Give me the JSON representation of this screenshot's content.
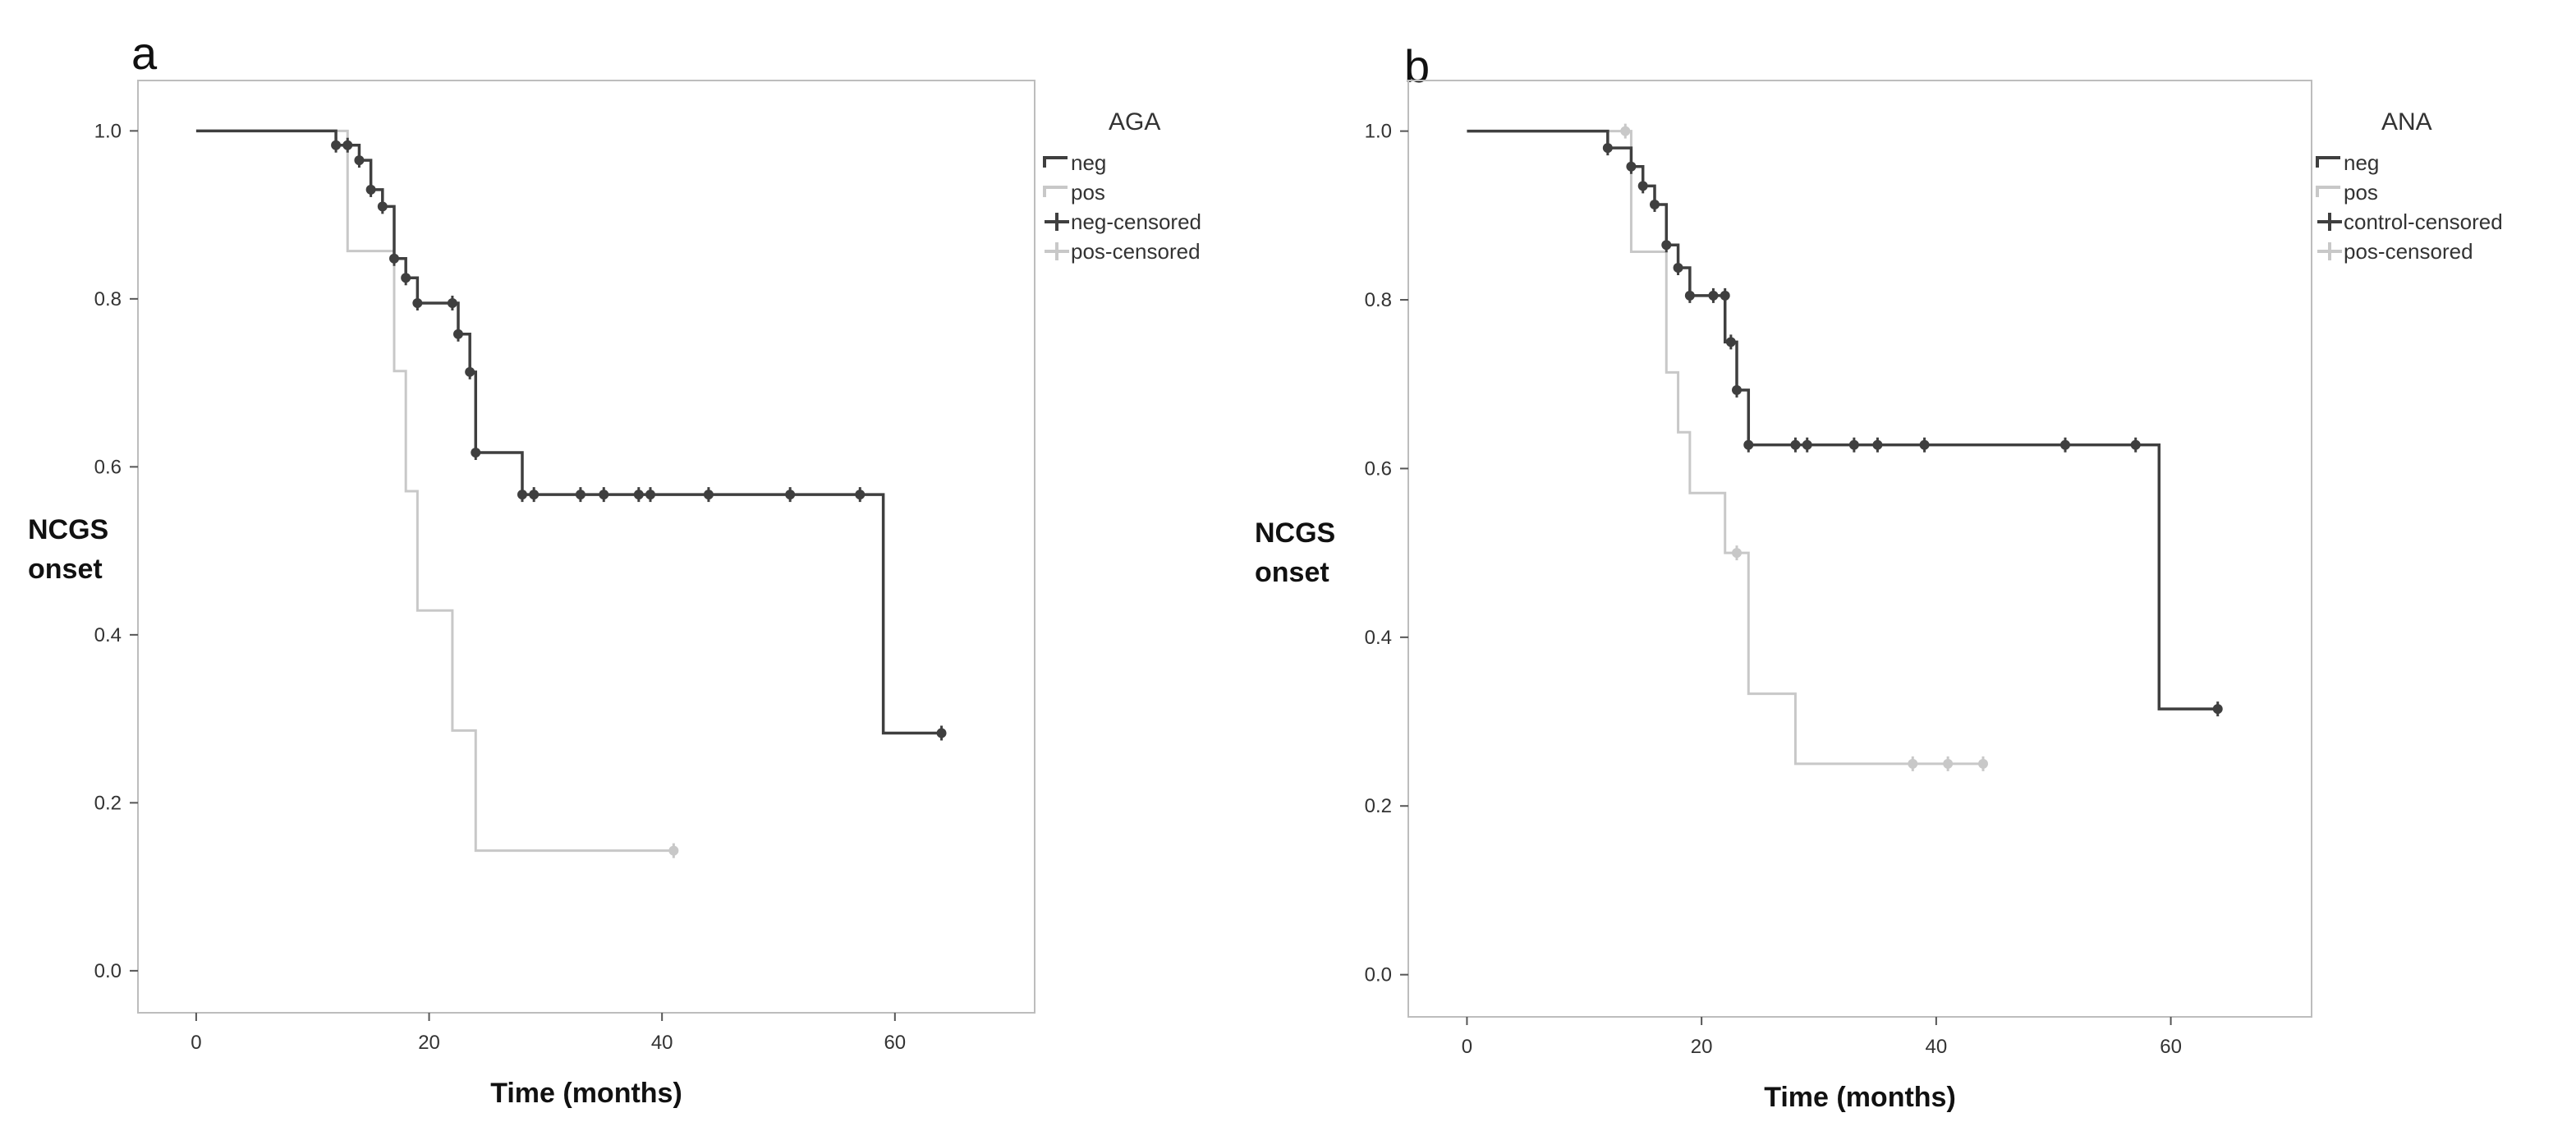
{
  "colors": {
    "neg": "#3f3f3f",
    "pos": "#c8c8c8",
    "frame": "#bdbdbd",
    "tick": "#555555"
  },
  "chart_data": [
    {
      "type": "line",
      "subtype": "kaplan-meier",
      "panel": "a",
      "xlabel": "Time (months)",
      "ylabel_lines": [
        "NCGS",
        "onset"
      ],
      "xlim": [
        -5,
        72
      ],
      "ylim": [
        -0.05,
        1.06
      ],
      "xticks": [
        0,
        20,
        40,
        60
      ],
      "yticks": [
        0.0,
        0.2,
        0.4,
        0.6,
        0.8,
        1.0
      ],
      "legend_title": "AGA",
      "legend": [
        "neg",
        "pos",
        "neg-censored",
        "pos-censored"
      ],
      "series": [
        {
          "name": "neg",
          "color_key": "neg",
          "steps": [
            [
              0,
              1.0
            ],
            [
              12,
              0.983
            ],
            [
              14,
              0.965
            ],
            [
              15,
              0.93
            ],
            [
              16,
              0.91
            ],
            [
              17,
              0.848
            ],
            [
              18,
              0.825
            ],
            [
              19,
              0.795
            ],
            [
              22.5,
              0.758
            ],
            [
              23.5,
              0.713
            ],
            [
              24,
              0.617
            ],
            [
              28,
              0.567
            ],
            [
              59,
              0.283
            ],
            [
              64,
              0.283
            ]
          ],
          "censored": [
            [
              12,
              0.983
            ],
            [
              13,
              0.983
            ],
            [
              14,
              0.965
            ],
            [
              15,
              0.93
            ],
            [
              16,
              0.91
            ],
            [
              17,
              0.848
            ],
            [
              18,
              0.825
            ],
            [
              19,
              0.795
            ],
            [
              22,
              0.795
            ],
            [
              22.5,
              0.758
            ],
            [
              23.5,
              0.713
            ],
            [
              24,
              0.617
            ],
            [
              28,
              0.567
            ],
            [
              29,
              0.567
            ],
            [
              33,
              0.567
            ],
            [
              35,
              0.567
            ],
            [
              38,
              0.567
            ],
            [
              39,
              0.567
            ],
            [
              44,
              0.567
            ],
            [
              51,
              0.567
            ],
            [
              57,
              0.567
            ],
            [
              64,
              0.283
            ]
          ]
        },
        {
          "name": "pos",
          "color_key": "pos",
          "steps": [
            [
              0,
              1.0
            ],
            [
              13,
              0.857
            ],
            [
              17,
              0.714
            ],
            [
              18,
              0.571
            ],
            [
              19,
              0.429
            ],
            [
              22,
              0.286
            ],
            [
              24,
              0.143
            ],
            [
              41,
              0.143
            ]
          ],
          "censored": [
            [
              41,
              0.143
            ]
          ]
        }
      ]
    },
    {
      "type": "line",
      "subtype": "kaplan-meier",
      "panel": "b",
      "xlabel": "Time (months)",
      "ylabel_lines": [
        "NCGS",
        "onset"
      ],
      "xlim": [
        -5,
        72
      ],
      "ylim": [
        -0.05,
        1.06
      ],
      "xticks": [
        0,
        20,
        40,
        60
      ],
      "yticks": [
        0.0,
        0.2,
        0.4,
        0.6,
        0.8,
        1.0
      ],
      "legend_title": "ANA",
      "legend": [
        "neg",
        "pos",
        "control-censored",
        "pos-censored"
      ],
      "series": [
        {
          "name": "neg",
          "color_key": "neg",
          "steps": [
            [
              0,
              1.0
            ],
            [
              12,
              0.98
            ],
            [
              14,
              0.958
            ],
            [
              15,
              0.935
            ],
            [
              16,
              0.913
            ],
            [
              17,
              0.865
            ],
            [
              18,
              0.838
            ],
            [
              19,
              0.805
            ],
            [
              22,
              0.75
            ],
            [
              23,
              0.693
            ],
            [
              24,
              0.628
            ],
            [
              59,
              0.315
            ],
            [
              64,
              0.315
            ]
          ],
          "censored": [
            [
              12,
              0.98
            ],
            [
              14,
              0.958
            ],
            [
              15,
              0.935
            ],
            [
              16,
              0.913
            ],
            [
              17,
              0.865
            ],
            [
              18,
              0.838
            ],
            [
              19,
              0.805
            ],
            [
              21,
              0.805
            ],
            [
              22,
              0.805
            ],
            [
              22.5,
              0.75
            ],
            [
              23,
              0.693
            ],
            [
              24,
              0.628
            ],
            [
              28,
              0.628
            ],
            [
              29,
              0.628
            ],
            [
              33,
              0.628
            ],
            [
              35,
              0.628
            ],
            [
              39,
              0.628
            ],
            [
              51,
              0.628
            ],
            [
              57,
              0.628
            ],
            [
              64,
              0.315
            ]
          ]
        },
        {
          "name": "pos",
          "color_key": "pos",
          "steps": [
            [
              0,
              1.0
            ],
            [
              14,
              0.857
            ],
            [
              17,
              0.714
            ],
            [
              18,
              0.643
            ],
            [
              19,
              0.571
            ],
            [
              22,
              0.5
            ],
            [
              24,
              0.333
            ],
            [
              28,
              0.25
            ],
            [
              44,
              0.25
            ]
          ],
          "censored": [
            [
              13.5,
              1.0
            ],
            [
              23,
              0.5
            ],
            [
              38,
              0.25
            ],
            [
              41,
              0.25
            ],
            [
              44,
              0.25
            ]
          ]
        }
      ]
    }
  ]
}
